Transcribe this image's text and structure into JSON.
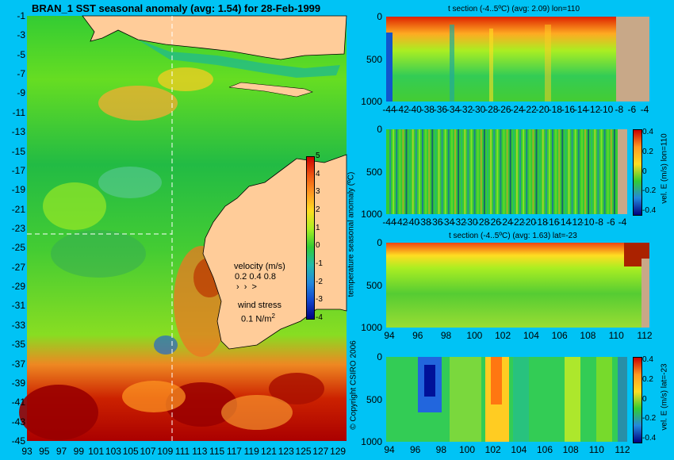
{
  "map": {
    "title": "BRAN_1 SST seasonal anomaly (avg: 1.54) for 28-Feb-1999",
    "y_ticks": [
      "-1",
      "-3",
      "-5",
      "-7",
      "-9",
      "-11",
      "-13",
      "-15",
      "-17",
      "-19",
      "-21",
      "-23",
      "-25",
      "-27",
      "-29",
      "-31",
      "-33",
      "-35",
      "-37",
      "-39",
      "-41",
      "-43",
      "-45"
    ],
    "x_ticks": [
      "93",
      "95",
      "97",
      "99",
      "101",
      "103",
      "105",
      "107",
      "109",
      "111",
      "113",
      "115",
      "117",
      "119",
      "121",
      "123",
      "125",
      "127",
      "129"
    ],
    "section_lat": -23,
    "section_lon": 110,
    "colorbar": {
      "label": "temperature seasonal anomaly (ºC)",
      "ticks": [
        "5",
        "4",
        "3",
        "2",
        "1",
        "0",
        "-1",
        "-2",
        "-3",
        "-4"
      ]
    },
    "velocity_label": "velocity (m/s)",
    "velocity_scale": "0.2 0.4 0.8",
    "wind_label": "wind stress",
    "wind_value": "0.1 N/m",
    "wind_exp": "2",
    "copyright": "© Copyright CSIRO 2006"
  },
  "panels": [
    {
      "title": "t section (-4..5ºC) (avg: 2.09) lon=110",
      "x_ticks": [
        "-44",
        "-42",
        "-40",
        "-38",
        "-36",
        "-34",
        "-32",
        "-30",
        "-28",
        "-26",
        "-24",
        "-22",
        "-20",
        "-18",
        "-16",
        "-14",
        "-12",
        "-10",
        "-8",
        "-6",
        "-4"
      ],
      "y_ticks": [
        "0",
        "500",
        "1000"
      ]
    },
    {
      "title": "",
      "x_ticks": [
        "-44",
        "-42",
        "-40",
        "-38",
        "-36",
        "-34",
        "-32",
        "-30",
        "-28",
        "-26",
        "-24",
        "-22",
        "-20",
        "-18",
        "-16",
        "-14",
        "-12",
        "-10",
        "-8",
        "-6",
        "-4"
      ],
      "y_ticks": [
        "0",
        "500",
        "1000"
      ],
      "colorbar_label": "vel. E (m/s) lon=110",
      "colorbar_ticks": [
        "0.4",
        "0.2",
        "0",
        "-0.2",
        "-0.4"
      ]
    },
    {
      "title": "t section (-4..5ºC) (avg: 1.63) lat=-23",
      "x_ticks": [
        "94",
        "96",
        "98",
        "100",
        "102",
        "104",
        "106",
        "108",
        "110",
        "112"
      ],
      "y_ticks": [
        "0",
        "500",
        "1000"
      ]
    },
    {
      "title": "",
      "x_ticks": [
        "94",
        "96",
        "98",
        "100",
        "102",
        "104",
        "106",
        "108",
        "110",
        "112"
      ],
      "y_ticks": [
        "0",
        "500",
        "1000"
      ],
      "colorbar_label": "vel. E (m/s) lat=-23",
      "colorbar_ticks": [
        "0.4",
        "0.2",
        "0",
        "-0.2",
        "-0.4"
      ]
    }
  ],
  "chart_data": [
    {
      "type": "heatmap",
      "title": "BRAN_1 SST seasonal anomaly (avg: 1.54) for 28-Feb-1999",
      "xlim": [
        93,
        130
      ],
      "ylim": [
        -45,
        0
      ],
      "colorbar_range": [
        -4,
        5
      ],
      "average": 1.54
    },
    {
      "type": "heatmap",
      "title": "t section (-4..5ºC) (avg: 2.09) lon=110",
      "xlim": [
        -45,
        -3
      ],
      "ylim": [
        1050,
        0
      ],
      "average": 2.09
    },
    {
      "type": "heatmap",
      "xlim": [
        -45,
        -3
      ],
      "ylim": [
        1050,
        0
      ],
      "colorbar_range": [
        -0.45,
        0.45
      ]
    },
    {
      "type": "heatmap",
      "title": "t section (-4..5ºC) (avg: 1.63) lat=-23",
      "xlim": [
        93,
        114
      ],
      "ylim": [
        1050,
        0
      ],
      "average": 1.63
    },
    {
      "type": "heatmap",
      "xlim": [
        93,
        114
      ],
      "ylim": [
        1050,
        0
      ],
      "colorbar_range": [
        -0.45,
        0.45
      ]
    }
  ]
}
